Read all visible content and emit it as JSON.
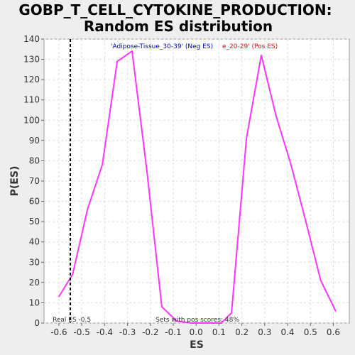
{
  "chart_data": {
    "type": "line",
    "title_lines": [
      "GOBP_T_CELL_CYTOKINE_PRODUCTION:",
      "Random ES distribution"
    ],
    "xlabel": "ES",
    "ylabel": "P(ES)",
    "xlim": [
      -0.665,
      0.67
    ],
    "ylim": [
      0,
      140
    ],
    "x_ticks": [
      -0.6,
      -0.5,
      -0.4,
      -0.3,
      -0.2,
      -0.1,
      0.0,
      0.1,
      0.2,
      0.3,
      0.4,
      0.5,
      0.6
    ],
    "x_tick_labels": [
      "-0.6",
      "-0.5",
      "-0.4",
      "-0.3",
      "-0.2",
      "-0.1",
      "0.0",
      "0.1",
      "0.2",
      "0.3",
      "0.4",
      "0.5",
      "0.6"
    ],
    "y_ticks": [
      0,
      10,
      20,
      30,
      40,
      50,
      60,
      70,
      80,
      90,
      100,
      110,
      120,
      130,
      140
    ],
    "y_tick_labels": [
      "0",
      "10",
      "20",
      "30",
      "40",
      "50",
      "60",
      "70",
      "80",
      "90",
      "100",
      "110",
      "120",
      "130",
      "140"
    ],
    "grid": true,
    "series": [
      {
        "color": "#ff33ff",
        "x": [
          -0.6,
          -0.54,
          -0.475,
          -0.41,
          -0.345,
          -0.28,
          -0.215,
          -0.15,
          -0.085,
          -0.02,
          0.045,
          0.11,
          0.155,
          0.22,
          0.285,
          0.35,
          0.415,
          0.48,
          0.545,
          0.61
        ],
        "y": [
          13,
          24,
          56,
          78,
          129,
          134,
          75,
          8,
          1,
          0,
          0,
          0,
          5,
          91,
          132,
          102,
          78,
          50,
          21,
          6
        ]
      }
    ],
    "real_es": {
      "x": -0.55,
      "label": "Real ES -0.5"
    },
    "legend": {
      "placement": "top",
      "neg_text": "'Adipose-Tissue_30-39' (Neg ES)",
      "pos_text": "e_20-29' (Pos ES)",
      "neg_color": "#0000cc",
      "pos_color": "#ff0000"
    },
    "annotation": "Sets with pos scores: 48%"
  }
}
